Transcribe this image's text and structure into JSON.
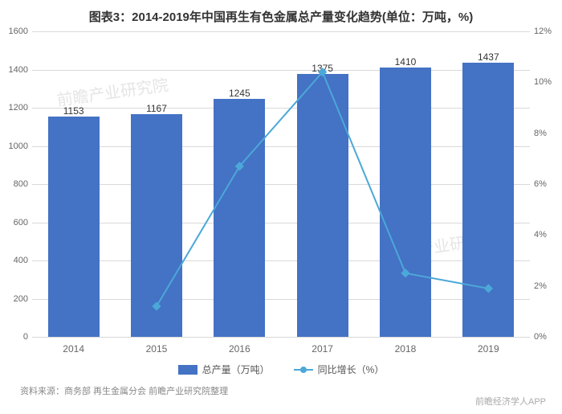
{
  "chart": {
    "type": "bar+line",
    "title": "图表3：2014-2019年中国再生有色金属总产量变化趋势(单位：万吨，%)",
    "categories": [
      "2014",
      "2015",
      "2016",
      "2017",
      "2018",
      "2019"
    ],
    "bar_series": {
      "name": "总产量（万吨）",
      "values": [
        1153,
        1167,
        1245,
        1375,
        1410,
        1437
      ],
      "color": "#4472c4"
    },
    "line_series": {
      "name": "同比增长（%）",
      "values": [
        null,
        1.2,
        6.7,
        10.4,
        2.5,
        1.9
      ],
      "color": "#4ba8d8",
      "marker": "diamond"
    },
    "y_left": {
      "min": 0,
      "max": 1600,
      "step": 200,
      "ticks": [
        0,
        200,
        400,
        600,
        800,
        1000,
        1200,
        1400,
        1600
      ]
    },
    "y_right": {
      "min": 0,
      "max": 12,
      "step": 2,
      "ticks": [
        "0%",
        "2%",
        "4%",
        "6%",
        "8%",
        "10%",
        "12%"
      ],
      "tick_values": [
        0,
        2,
        4,
        6,
        8,
        10,
        12
      ]
    },
    "grid_color": "#d9d9d9",
    "background_color": "#ffffff",
    "title_fontsize": 15,
    "label_fontsize": 12,
    "tick_fontsize": 11,
    "bar_width_ratio": 0.62,
    "watermarks": [
      "前瞻产业研究院",
      "前瞻产业研究院",
      "前瞻经济学人APP"
    ]
  },
  "source": "资料来源：商务部 再生金属分会 前瞻产业研究院整理",
  "brand": "前瞻经济学人APP"
}
